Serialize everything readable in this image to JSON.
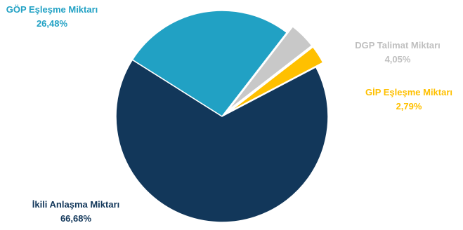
{
  "chart_data": {
    "type": "pie",
    "title": "",
    "slices": [
      {
        "label": "İkili Anlaşma Miktarı",
        "value_text": "66,68%",
        "value": 66.68,
        "color": "#12375a"
      },
      {
        "label": "GÖP Eşleşme Miktarı",
        "value_text": "26,48%",
        "value": 26.48,
        "color": "#21a1c4"
      },
      {
        "label": "DGP Talimat Miktarı",
        "value_text": "4,05%",
        "value": 4.05,
        "color": "#c8c8c8"
      },
      {
        "label": "GİP Eşleşme Miktarı",
        "value_text": "2,79%",
        "value": 2.79,
        "color": "#ffc000"
      }
    ],
    "label_colors": {
      "İkili Anlaşma Miktarı": "#12375a",
      "GÖP Eşleşme Miktarı": "#21a1c4",
      "DGP Talimat Miktarı": "#bfbfbf",
      "GİP Eşleşme Miktarı": "#ffc000"
    }
  }
}
